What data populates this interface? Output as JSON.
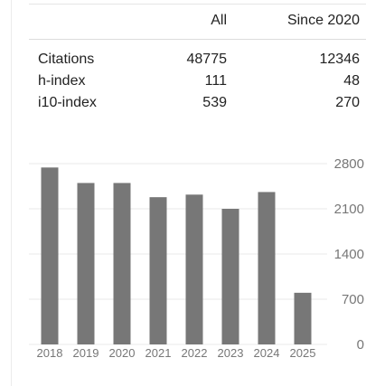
{
  "citation_table": {
    "headers": {
      "all": "All",
      "since": "Since 2020"
    },
    "rows": [
      {
        "label": "Citations",
        "all": "48775",
        "since": "12346"
      },
      {
        "label": "h-index",
        "all": "111",
        "since": "48"
      },
      {
        "label": "i10-index",
        "all": "539",
        "since": "270"
      }
    ]
  },
  "chart_data": {
    "type": "bar",
    "categories": [
      "2018",
      "2019",
      "2020",
      "2021",
      "2022",
      "2023",
      "2024",
      "2025"
    ],
    "values": [
      2740,
      2500,
      2500,
      2280,
      2320,
      2100,
      2360,
      800
    ],
    "ylim": [
      0,
      2800
    ],
    "yticks": [
      2800,
      2100,
      1400,
      700,
      0
    ],
    "color": "#777777",
    "grid": true
  }
}
